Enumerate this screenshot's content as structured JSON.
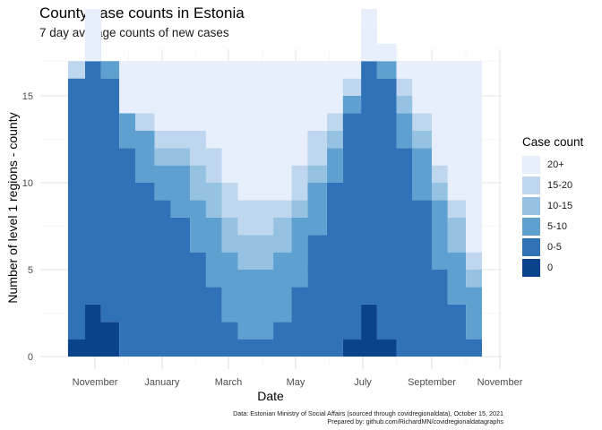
{
  "chart_data": {
    "type": "area",
    "title": "County case counts in Estonia",
    "subtitle": "7 day average counts of new cases",
    "xlabel": "Date",
    "ylabel": "Number of level 1 regions - county",
    "x_ticks": [
      "November",
      "January",
      "March",
      "May",
      "July",
      "September",
      "November"
    ],
    "y_ticks": [
      "0",
      "5",
      "10",
      "15"
    ],
    "ylim": [
      0,
      17
    ],
    "x_range": [
      "2020-10-17",
      "2021-10-15"
    ],
    "grid": true,
    "legend_position": "right",
    "legend_title": "Case count",
    "categories": [
      "0",
      "0-5",
      "5-10",
      "10-15",
      "15-20",
      "20+"
    ],
    "series": [
      {
        "name": "0",
        "color": "#0b428c",
        "x": [
          "2020-10-17",
          "2020-10-25",
          "2020-11-01",
          "2020-11-08",
          "2020-11-20",
          "2020-12-15",
          "2021-01-15",
          "2021-02-15",
          "2021-03-15",
          "2021-04-15",
          "2021-05-15",
          "2021-06-15",
          "2021-06-25",
          "2021-07-01",
          "2021-07-08",
          "2021-07-20",
          "2021-08-15",
          "2021-09-15",
          "2021-10-15"
        ],
        "values": [
          1,
          2,
          3,
          2,
          0,
          0,
          0,
          0,
          0,
          0,
          0,
          1,
          2,
          3,
          1,
          0,
          0,
          0,
          0
        ]
      },
      {
        "name": "0-5",
        "color": "#2f72b8",
        "x": [
          "2020-10-17",
          "2020-11-01",
          "2020-11-15",
          "2020-12-01",
          "2020-12-15",
          "2021-01-01",
          "2021-01-15",
          "2021-02-01",
          "2021-02-15",
          "2021-03-01",
          "2021-03-15",
          "2021-04-01",
          "2021-04-15",
          "2021-05-01",
          "2021-05-15",
          "2021-06-01",
          "2021-06-15",
          "2021-07-01",
          "2021-07-15",
          "2021-08-01",
          "2021-08-15",
          "2021-09-01",
          "2021-09-15",
          "2021-10-01",
          "2021-10-15"
        ],
        "values": [
          15,
          15,
          14,
          12,
          10,
          9,
          8,
          6,
          4,
          2,
          1,
          1,
          2,
          4,
          7,
          10,
          13,
          15,
          15,
          12,
          9,
          5,
          3,
          1,
          1
        ]
      },
      {
        "name": "5-10",
        "color": "#5ea0cf",
        "x": [
          "2020-10-17",
          "2020-11-01",
          "2020-11-15",
          "2020-12-01",
          "2020-12-15",
          "2021-01-01",
          "2021-01-15",
          "2021-02-01",
          "2021-02-15",
          "2021-03-01",
          "2021-03-15",
          "2021-04-01",
          "2021-04-15",
          "2021-05-01",
          "2021-05-15",
          "2021-06-01",
          "2021-06-15",
          "2021-07-01",
          "2021-07-15",
          "2021-08-01",
          "2021-08-15",
          "2021-09-01",
          "2021-09-15",
          "2021-10-01",
          "2021-10-15"
        ],
        "values": [
          0,
          1,
          1,
          2,
          3,
          2,
          3,
          3,
          4,
          4,
          4,
          4,
          4,
          4,
          3,
          2,
          1,
          1,
          1,
          2,
          3,
          4,
          3,
          3,
          4
        ]
      },
      {
        "name": "10-15",
        "color": "#95c2e2",
        "x": [
          "2020-10-17",
          "2020-11-01",
          "2020-11-15",
          "2020-12-01",
          "2020-12-15",
          "2021-01-01",
          "2021-01-15",
          "2021-02-01",
          "2021-02-15",
          "2021-03-01",
          "2021-03-15",
          "2021-04-01",
          "2021-04-15",
          "2021-05-01",
          "2021-05-15",
          "2021-06-01",
          "2021-06-15",
          "2021-07-01",
          "2021-07-15",
          "2021-08-01",
          "2021-08-15",
          "2021-09-01",
          "2021-09-15",
          "2021-10-01",
          "2021-10-15"
        ],
        "values": [
          0,
          0,
          0,
          0,
          0,
          1,
          1,
          2,
          2,
          2,
          2,
          2,
          2,
          1,
          1,
          1,
          0,
          0,
          0,
          1,
          1,
          1,
          2,
          1,
          0
        ]
      },
      {
        "name": "15-20",
        "color": "#bed6ee",
        "x": [
          "2020-10-17",
          "2020-11-01",
          "2020-11-15",
          "2020-12-01",
          "2020-12-15",
          "2021-01-01",
          "2021-01-15",
          "2021-02-01",
          "2021-02-15",
          "2021-03-01",
          "2021-03-15",
          "2021-04-01",
          "2021-04-15",
          "2021-05-01",
          "2021-05-15",
          "2021-06-01",
          "2021-06-15",
          "2021-07-01",
          "2021-07-15",
          "2021-08-01",
          "2021-08-15",
          "2021-09-01",
          "2021-09-15",
          "2021-10-01",
          "2021-10-15"
        ],
        "values": [
          1,
          1,
          0,
          0,
          1,
          1,
          1,
          2,
          2,
          2,
          2,
          2,
          1,
          2,
          2,
          1,
          1,
          1,
          1,
          1,
          1,
          1,
          1,
          1,
          0
        ]
      },
      {
        "name": "20+",
        "color": "#e8effc",
        "x": [
          "2020-10-17",
          "2020-11-01",
          "2020-11-15",
          "2020-12-01",
          "2020-12-15",
          "2021-01-01",
          "2021-01-15",
          "2021-02-01",
          "2021-02-15",
          "2021-03-01",
          "2021-03-15",
          "2021-04-01",
          "2021-04-15",
          "2021-05-01",
          "2021-05-15",
          "2021-06-01",
          "2021-06-15",
          "2021-07-01",
          "2021-07-15",
          "2021-08-01",
          "2021-08-15",
          "2021-09-01",
          "2021-09-15",
          "2021-10-01",
          "2021-10-15"
        ],
        "values": [
          1,
          0,
          2,
          3,
          3,
          4,
          4,
          4,
          5,
          7,
          8,
          8,
          8,
          6,
          4,
          3,
          2,
          0,
          0,
          1,
          3,
          6,
          8,
          11,
          12
        ]
      }
    ],
    "caption_lines": [
      "Data: Estonian Ministry of Social Affairs (sourced through covidregionaldata), October 15, 2021",
      "Prepared by: github.com/RichardMN/covidregionaldatagraphs"
    ]
  }
}
